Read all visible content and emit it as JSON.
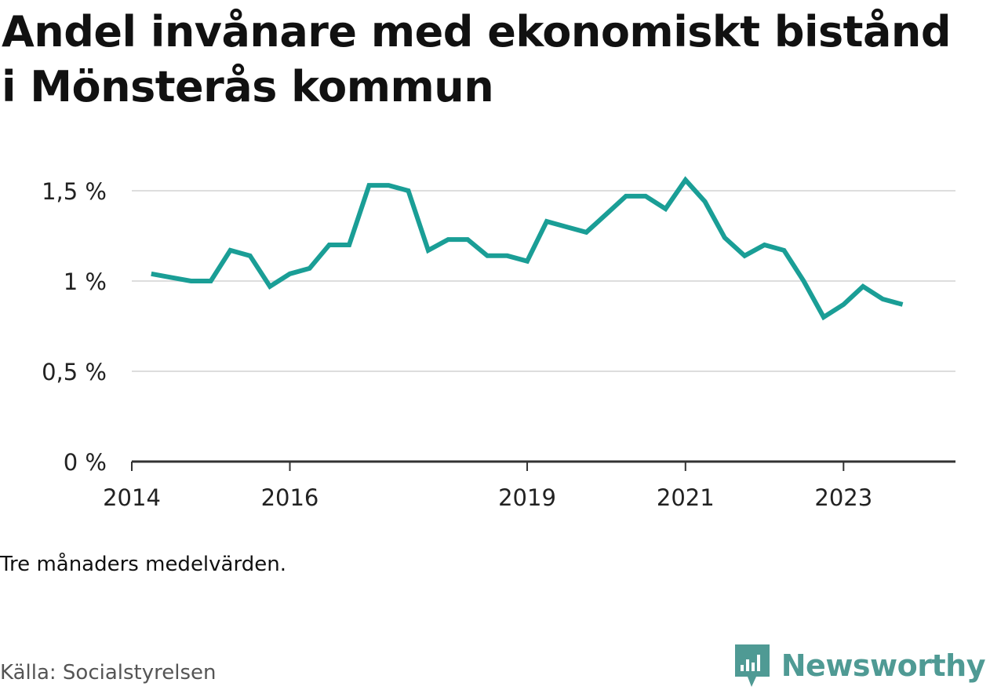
{
  "title": "Andel invånare med ekonomiskt bistånd i Mönsterås kommun",
  "note": "Tre månaders medelvärden.",
  "source": "Källa: Socialstyrelsen",
  "brand": {
    "name": "Newsworthy",
    "icon": "newsworthy-logo-icon",
    "color": "#4f9a94"
  },
  "colors": {
    "line": "#1a9e96",
    "grid": "#dddddd",
    "axis": "#333333"
  },
  "chart_data": {
    "type": "line",
    "title": "Andel invånare med ekonomiskt bistånd i Mönsterås kommun",
    "xlabel": "",
    "ylabel": "",
    "grid": true,
    "legend": "none",
    "ylim": [
      0,
      1.6
    ],
    "yticks": [
      0,
      0.5,
      1,
      1.5
    ],
    "ytick_labels": [
      "0 %",
      "0,5 %",
      "1 %",
      "1,5 %"
    ],
    "xlim": [
      "2014-01-01",
      "2024-06-01"
    ],
    "xticks": [
      "2014-01-01",
      "2016-01-01",
      "2019-01-01",
      "2021-01-01",
      "2023-01-01"
    ],
    "xtick_labels": [
      "2014",
      "2016",
      "2019",
      "2021",
      "2023"
    ],
    "series": [
      {
        "x": [
          "2014-04-01",
          "2014-07-01",
          "2014-10-01",
          "2015-01-01",
          "2015-04-01",
          "2015-07-01",
          "2015-10-01",
          "2016-01-01",
          "2016-04-01",
          "2016-07-01",
          "2016-10-01",
          "2017-01-01",
          "2017-04-01",
          "2017-07-01",
          "2017-10-01",
          "2018-01-01",
          "2018-04-01",
          "2018-07-01",
          "2018-10-01",
          "2019-01-01",
          "2019-04-01",
          "2019-07-01",
          "2019-10-01",
          "2020-01-01",
          "2020-04-01",
          "2020-07-01",
          "2020-10-01",
          "2021-01-01",
          "2021-04-01",
          "2021-07-01",
          "2021-10-01",
          "2022-01-01",
          "2022-04-01",
          "2022-07-01",
          "2022-10-01",
          "2023-01-01",
          "2023-04-01",
          "2023-07-01",
          "2023-10-01"
        ],
        "values": [
          1.04,
          1.02,
          1.0,
          1.0,
          1.17,
          1.14,
          0.97,
          1.04,
          1.07,
          1.2,
          1.2,
          1.53,
          1.53,
          1.5,
          1.17,
          1.23,
          1.23,
          1.14,
          1.14,
          1.11,
          1.33,
          1.3,
          1.27,
          1.37,
          1.47,
          1.47,
          1.4,
          1.56,
          1.44,
          1.24,
          1.14,
          1.2,
          1.17,
          1.0,
          0.8,
          0.87,
          0.97,
          0.9,
          0.87
        ]
      }
    ]
  }
}
